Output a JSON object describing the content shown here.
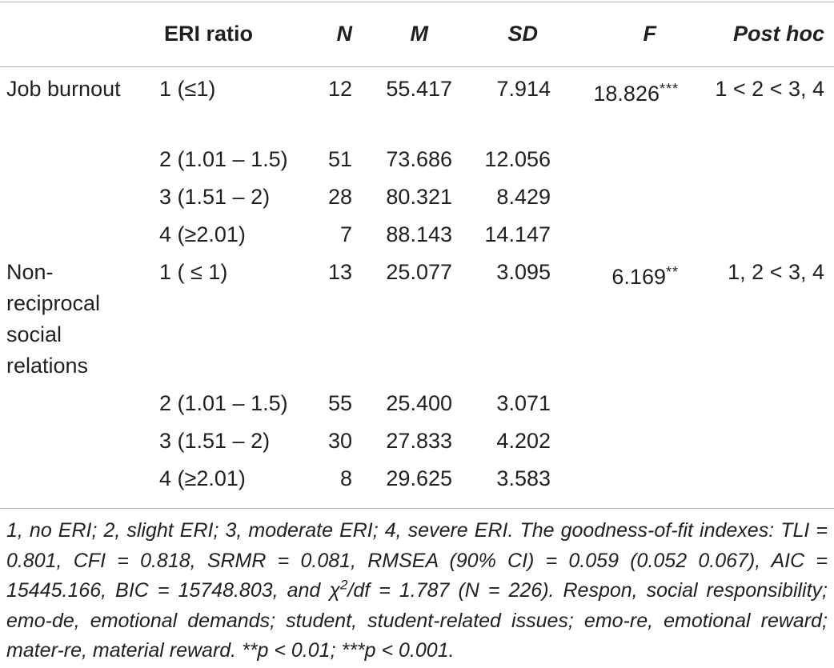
{
  "table": {
    "headers": {
      "group": "",
      "eri_ratio": "ERI ratio",
      "n": "N",
      "m": "M",
      "sd": "SD",
      "f": "F",
      "post_hoc": "Post hoc"
    },
    "groups": [
      {
        "label": "Job burnout",
        "f": "18.826",
        "f_stars": "***",
        "post_hoc": "1 < 2 < 3, 4",
        "rows": [
          {
            "eri": "1 (≤1)",
            "n": "12",
            "m": "55.417",
            "sd": "7.914"
          },
          {
            "eri": "2 (1.01 – 1.5)",
            "n": "51",
            "m": "73.686",
            "sd": "12.056"
          },
          {
            "eri": "3 (1.51 – 2)",
            "n": "28",
            "m": "80.321",
            "sd": "8.429"
          },
          {
            "eri": "4 (≥2.01)",
            "n": "7",
            "m": "88.143",
            "sd": "14.147"
          }
        ]
      },
      {
        "label": "Non-reciprocal social relations",
        "f": "6.169",
        "f_stars": "**",
        "post_hoc": "1, 2 < 3, 4",
        "rows": [
          {
            "eri": "1 ( ≤ 1)",
            "n": "13",
            "m": "25.077",
            "sd": "3.095"
          },
          {
            "eri": "2 (1.01 – 1.5)",
            "n": "55",
            "m": "25.400",
            "sd": "3.071"
          },
          {
            "eri": "3 (1.51 – 2)",
            "n": "30",
            "m": "27.833",
            "sd": "4.202"
          },
          {
            "eri": "4 (≥2.01)",
            "n": "8",
            "m": "29.625",
            "sd": "3.583"
          }
        ]
      }
    ]
  },
  "note": {
    "part1": "1, no ERI; 2, slight ERI; 3, moderate ERI; 4, severe ERI. The goodness-of-fit indexes: TLI = 0.801, CFI = 0.818, SRMR = 0.081, RMSEA (90% CI) = 0.059 (0.052 0.067), AIC = 15445.166, BIC = 15748.803, and χ",
    "sup": "2",
    "part2": "/df = 1.787 (N = 226). Respon, social responsibility; emo-de, emotional demands; student, student-related issues; emo-re, emotional reward; mater-re, material reward. **p < 0.01; ***p < 0.001."
  }
}
